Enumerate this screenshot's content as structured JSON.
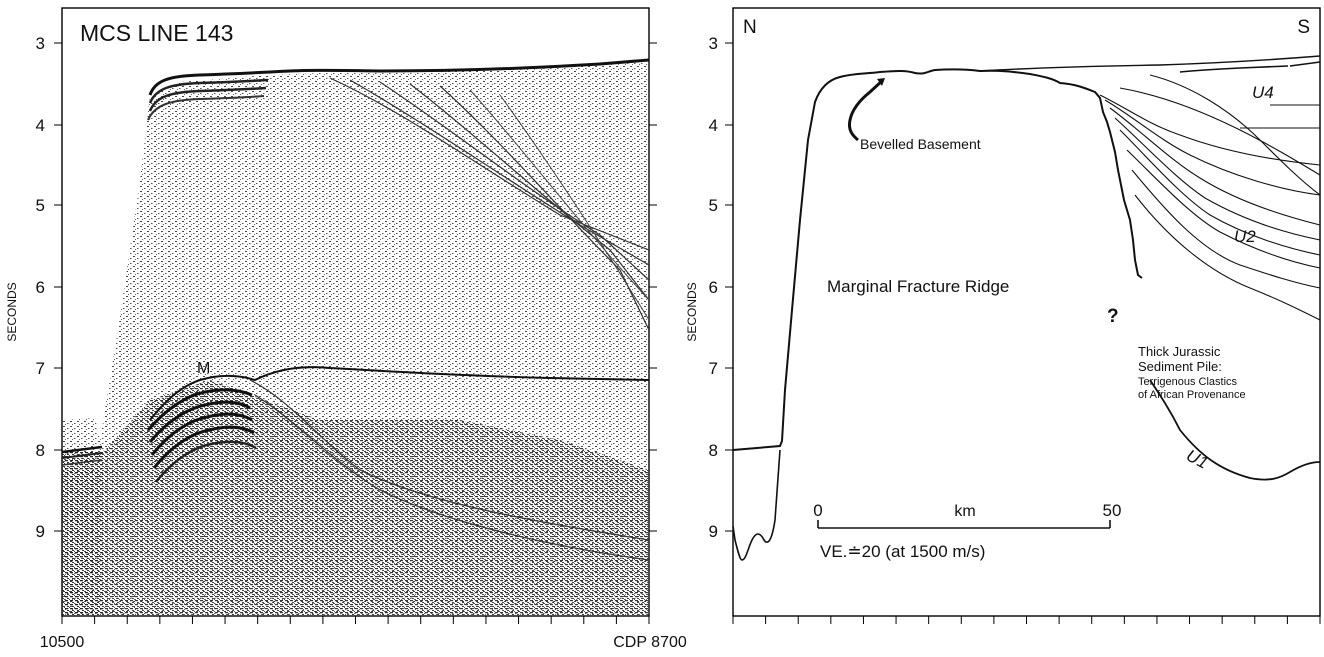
{
  "seismic": {
    "title": "MCS LINE 143",
    "y_axis_label": "SECONDS",
    "y_ticks": [
      "3",
      "4",
      "5",
      "6",
      "7",
      "8",
      "9"
    ],
    "x_start_label": "10500",
    "x_end_label": "CDP 8700",
    "horizon_label": "M"
  },
  "interpretation": {
    "north_label": "N",
    "south_label": "S",
    "y_axis_label": "SECONDS",
    "y_ticks": [
      "3",
      "4",
      "5",
      "6",
      "7",
      "8",
      "9"
    ],
    "units": {
      "u4": "U4",
      "u2": "U2",
      "u1": "U1"
    },
    "annotations": {
      "bevelled_basement": "Bevelled Basement",
      "ridge": "Marginal Fracture Ridge",
      "question_mark": "?",
      "sediment_line1": "Thick Jurassic",
      "sediment_line2": "Sediment Pile:",
      "sediment_line3": "Terrigenous Clastics",
      "sediment_line4": "of African Provenance"
    },
    "scale_bar": {
      "start": "0",
      "unit": "km",
      "end": "50",
      "ve_note": "VE.≐20 (at 1500 m/s)"
    }
  }
}
